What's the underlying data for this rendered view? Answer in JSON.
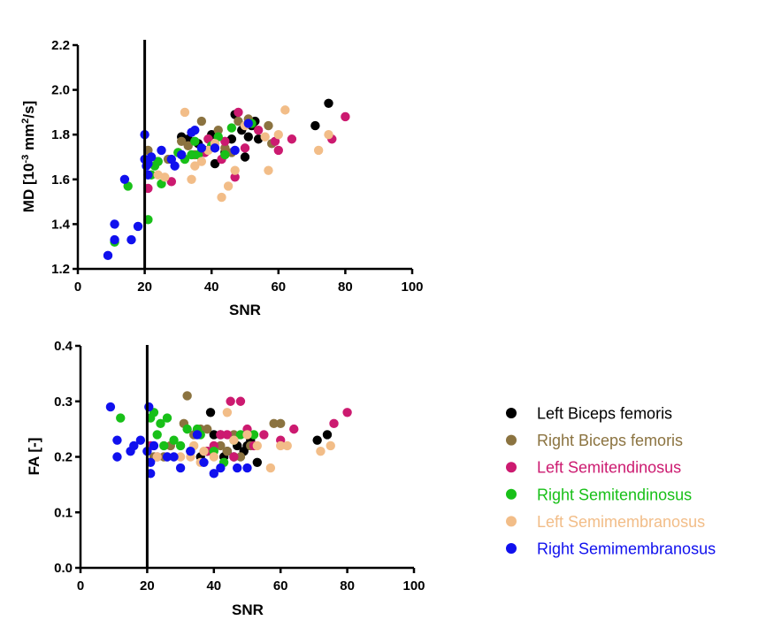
{
  "chart_data": [
    {
      "type": "scatter",
      "panel": "top",
      "xlabel": "SNR",
      "ylabel_parts": {
        "base": "MD [10",
        "exp1": "-3",
        "mid": " mm",
        "exp2": "2",
        "tail": "/s]"
      },
      "xlim": [
        0,
        100
      ],
      "ylim": [
        1.2,
        2.2
      ],
      "xticks": [
        0,
        20,
        40,
        60,
        80,
        100
      ],
      "xtick_labels": [
        "0",
        "20",
        "40",
        "60",
        "80",
        "100"
      ],
      "yticks": [
        1.2,
        1.4,
        1.6,
        1.8,
        2.0,
        2.2
      ],
      "ytick_labels": [
        "1.2",
        "1.4",
        "1.6",
        "1.8",
        "2.0",
        "2.2"
      ],
      "threshold_x": 20,
      "series": [
        {
          "name": "Left Biceps femoris",
          "color": "#000000",
          "points": [
            [
              31,
              1.79
            ],
            [
              33,
              1.78
            ],
            [
              36,
              1.76
            ],
            [
              38,
              1.73
            ],
            [
              40,
              1.8
            ],
            [
              41,
              1.67
            ],
            [
              44,
              1.72
            ],
            [
              46,
              1.78
            ],
            [
              47,
              1.89
            ],
            [
              49,
              1.82
            ],
            [
              50,
              1.7
            ],
            [
              51,
              1.79
            ],
            [
              52,
              1.84
            ],
            [
              53,
              1.86
            ],
            [
              54,
              1.78
            ],
            [
              71,
              1.84
            ],
            [
              75,
              1.94
            ]
          ]
        },
        {
          "name": "Right Biceps femoris",
          "color": "#8b7340",
          "points": [
            [
              21,
              1.73
            ],
            [
              24,
              1.68
            ],
            [
              27,
              1.69
            ],
            [
              30,
              1.72
            ],
            [
              31,
              1.77
            ],
            [
              33,
              1.75
            ],
            [
              35,
              1.71
            ],
            [
              37,
              1.86
            ],
            [
              39,
              1.78
            ],
            [
              42,
              1.82
            ],
            [
              44,
              1.74
            ],
            [
              46,
              1.72
            ],
            [
              48,
              1.86
            ],
            [
              51,
              1.87
            ],
            [
              57,
              1.84
            ],
            [
              58,
              1.76
            ]
          ]
        },
        {
          "name": "Left Semitendinosus",
          "color": "#cc1a70",
          "points": [
            [
              21,
              1.56
            ],
            [
              28,
              1.59
            ],
            [
              38,
              1.72
            ],
            [
              39,
              1.78
            ],
            [
              43,
              1.69
            ],
            [
              44,
              1.77
            ],
            [
              47,
              1.61
            ],
            [
              48,
              1.9
            ],
            [
              50,
              1.74
            ],
            [
              54,
              1.82
            ],
            [
              59,
              1.77
            ],
            [
              60,
              1.73
            ],
            [
              64,
              1.78
            ],
            [
              76,
              1.78
            ],
            [
              80,
              1.88
            ]
          ]
        },
        {
          "name": "Right Semitendinosus",
          "color": "#18c018",
          "points": [
            [
              11,
              1.32
            ],
            [
              15,
              1.57
            ],
            [
              21,
              1.42
            ],
            [
              22,
              1.62
            ],
            [
              23,
              1.66
            ],
            [
              24,
              1.68
            ],
            [
              25,
              1.58
            ],
            [
              30,
              1.72
            ],
            [
              32,
              1.69
            ],
            [
              34,
              1.71
            ],
            [
              35,
              1.77
            ],
            [
              36,
              1.71
            ],
            [
              40,
              1.75
            ],
            [
              42,
              1.79
            ],
            [
              44,
              1.71
            ],
            [
              46,
              1.83
            ],
            [
              52,
              1.85
            ]
          ]
        },
        {
          "name": "Left Semimembranosus",
          "color": "#f2bd88",
          "points": [
            [
              24,
              1.62
            ],
            [
              26,
              1.61
            ],
            [
              32,
              1.9
            ],
            [
              34,
              1.6
            ],
            [
              35,
              1.66
            ],
            [
              37,
              1.68
            ],
            [
              39,
              1.73
            ],
            [
              41,
              1.76
            ],
            [
              43,
              1.52
            ],
            [
              45,
              1.57
            ],
            [
              47,
              1.64
            ],
            [
              50,
              1.84
            ],
            [
              56,
              1.79
            ],
            [
              57,
              1.64
            ],
            [
              60,
              1.8
            ],
            [
              62,
              1.91
            ],
            [
              72,
              1.73
            ],
            [
              75,
              1.8
            ]
          ]
        },
        {
          "name": "Right Semimembranosus",
          "color": "#1010ee",
          "points": [
            [
              9,
              1.26
            ],
            [
              11,
              1.33
            ],
            [
              11,
              1.4
            ],
            [
              14,
              1.6
            ],
            [
              16,
              1.33
            ],
            [
              18,
              1.39
            ],
            [
              20,
              1.69
            ],
            [
              20,
              1.8
            ],
            [
              20.5,
              1.66
            ],
            [
              21,
              1.62
            ],
            [
              21,
              1.67
            ],
            [
              22,
              1.7
            ],
            [
              25,
              1.73
            ],
            [
              28,
              1.69
            ],
            [
              29,
              1.66
            ],
            [
              31,
              1.71
            ],
            [
              34,
              1.81
            ],
            [
              35,
              1.82
            ],
            [
              37,
              1.74
            ],
            [
              41,
              1.74
            ],
            [
              47,
              1.73
            ],
            [
              51,
              1.85
            ]
          ]
        }
      ]
    },
    {
      "type": "scatter",
      "panel": "bottom",
      "xlabel": "SNR",
      "ylabel": "FA [-]",
      "xlim": [
        0,
        100
      ],
      "ylim": [
        0.0,
        0.4
      ],
      "xticks": [
        0,
        20,
        40,
        60,
        80,
        100
      ],
      "xtick_labels": [
        "0",
        "20",
        "40",
        "60",
        "80",
        "100"
      ],
      "yticks": [
        0.0,
        0.1,
        0.2,
        0.3,
        0.4
      ],
      "ytick_labels": [
        "0.0",
        "0.1",
        "0.2",
        "0.3",
        "0.4"
      ],
      "threshold_x": 20,
      "series": [
        {
          "name": "Left Biceps femoris",
          "color": "#000000",
          "points": [
            [
              33,
              0.21
            ],
            [
              36,
              0.2
            ],
            [
              38,
              0.21
            ],
            [
              39,
              0.28
            ],
            [
              40,
              0.24
            ],
            [
              42,
              0.24
            ],
            [
              43,
              0.2
            ],
            [
              44,
              0.21
            ],
            [
              46,
              0.2
            ],
            [
              47,
              0.22
            ],
            [
              49,
              0.21
            ],
            [
              50,
              0.22
            ],
            [
              51,
              0.23
            ],
            [
              53,
              0.19
            ],
            [
              71,
              0.23
            ],
            [
              74,
              0.24
            ]
          ]
        },
        {
          "name": "Right Biceps femoris",
          "color": "#8b7340",
          "points": [
            [
              22,
              0.2
            ],
            [
              25,
              0.2
            ],
            [
              27,
              0.22
            ],
            [
              31,
              0.26
            ],
            [
              32,
              0.31
            ],
            [
              34,
              0.24
            ],
            [
              36,
              0.25
            ],
            [
              38,
              0.25
            ],
            [
              42,
              0.22
            ],
            [
              44,
              0.21
            ],
            [
              46,
              0.24
            ],
            [
              48,
              0.2
            ],
            [
              51,
              0.22
            ],
            [
              58,
              0.26
            ],
            [
              60,
              0.26
            ]
          ]
        },
        {
          "name": "Left Semitendinosus",
          "color": "#cc1a70",
          "points": [
            [
              21,
              0.22
            ],
            [
              23,
              0.2
            ],
            [
              38,
              0.21
            ],
            [
              40,
              0.22
            ],
            [
              42,
              0.24
            ],
            [
              44,
              0.24
            ],
            [
              45,
              0.3
            ],
            [
              46,
              0.2
            ],
            [
              48,
              0.3
            ],
            [
              50,
              0.25
            ],
            [
              52,
              0.22
            ],
            [
              55,
              0.24
            ],
            [
              60,
              0.23
            ],
            [
              64,
              0.25
            ],
            [
              76,
              0.26
            ],
            [
              80,
              0.28
            ]
          ]
        },
        {
          "name": "Right Semitendinosus",
          "color": "#18c018",
          "points": [
            [
              12,
              0.27
            ],
            [
              21,
              0.27
            ],
            [
              22,
              0.28
            ],
            [
              23,
              0.24
            ],
            [
              24,
              0.26
            ],
            [
              25,
              0.22
            ],
            [
              26,
              0.27
            ],
            [
              28,
              0.23
            ],
            [
              30,
              0.22
            ],
            [
              32,
              0.25
            ],
            [
              35,
              0.25
            ],
            [
              36,
              0.24
            ],
            [
              40,
              0.21
            ],
            [
              43,
              0.19
            ],
            [
              46,
              0.23
            ],
            [
              48,
              0.24
            ],
            [
              52,
              0.24
            ]
          ]
        },
        {
          "name": "Left Semimembranosus",
          "color": "#f2bd88",
          "points": [
            [
              23,
              0.2
            ],
            [
              26,
              0.2
            ],
            [
              30,
              0.2
            ],
            [
              33,
              0.2
            ],
            [
              34,
              0.22
            ],
            [
              36,
              0.19
            ],
            [
              37,
              0.21
            ],
            [
              40,
              0.2
            ],
            [
              44,
              0.28
            ],
            [
              46,
              0.23
            ],
            [
              50,
              0.24
            ],
            [
              53,
              0.22
            ],
            [
              57,
              0.18
            ],
            [
              60,
              0.22
            ],
            [
              62,
              0.22
            ],
            [
              72,
              0.21
            ],
            [
              75,
              0.22
            ]
          ]
        },
        {
          "name": "Right Semimembranosus",
          "color": "#1010ee",
          "points": [
            [
              9,
              0.29
            ],
            [
              11,
              0.2
            ],
            [
              11,
              0.23
            ],
            [
              15,
              0.21
            ],
            [
              16,
              0.22
            ],
            [
              18,
              0.23
            ],
            [
              20,
              0.21
            ],
            [
              20.5,
              0.29
            ],
            [
              21,
              0.19
            ],
            [
              21,
              0.17
            ],
            [
              22,
              0.22
            ],
            [
              26,
              0.2
            ],
            [
              28,
              0.2
            ],
            [
              30,
              0.18
            ],
            [
              33,
              0.21
            ],
            [
              35,
              0.24
            ],
            [
              37,
              0.19
            ],
            [
              40,
              0.17
            ],
            [
              42,
              0.18
            ],
            [
              47,
              0.18
            ],
            [
              50,
              0.18
            ]
          ]
        }
      ]
    }
  ],
  "legend": [
    {
      "label": "Left Biceps femoris",
      "color": "#000000"
    },
    {
      "label": "Right Biceps femoris",
      "color": "#8b7340"
    },
    {
      "label": "Left Semitendinosus",
      "color": "#cc1a70"
    },
    {
      "label": "Right Semitendinosus",
      "color": "#18c018"
    },
    {
      "label": "Left Semimembranosus",
      "color": "#f2bd88"
    },
    {
      "label": "Right Semimembranosus",
      "color": "#1010ee"
    }
  ]
}
